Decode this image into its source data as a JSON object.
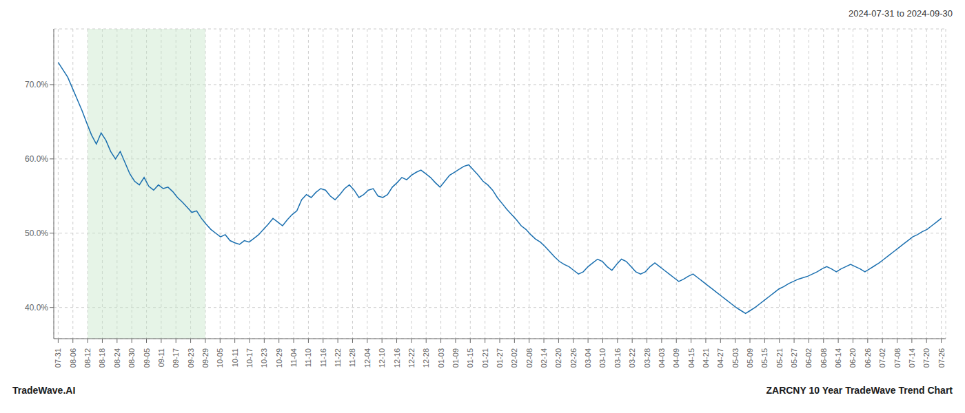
{
  "chart_data": {
    "type": "line",
    "title": "ZARCNY 10 Year TradeWave Trend Chart",
    "subtitle": "2024-07-31 to 2024-09-30",
    "annotations": [
      "TradeWave.AI"
    ],
    "color": "#1a6faf",
    "grid": true,
    "shaded_range": {
      "from": "08-12",
      "to": "09-29",
      "color": "#c8e6c9"
    },
    "xlim": [
      -0.3,
      60.3
    ],
    "xticks": [
      {
        "value": 0,
        "label": "07-31"
      },
      {
        "value": 1,
        "label": "08-06"
      },
      {
        "value": 2,
        "label": "08-12"
      },
      {
        "value": 3,
        "label": "08-18"
      },
      {
        "value": 4,
        "label": "08-24"
      },
      {
        "value": 5,
        "label": "08-30"
      },
      {
        "value": 6,
        "label": "09-05"
      },
      {
        "value": 7,
        "label": "09-11"
      },
      {
        "value": 8,
        "label": "09-17"
      },
      {
        "value": 9,
        "label": "09-23"
      },
      {
        "value": 10,
        "label": "09-29"
      },
      {
        "value": 11,
        "label": "10-05"
      },
      {
        "value": 12,
        "label": "10-11"
      },
      {
        "value": 13,
        "label": "10-17"
      },
      {
        "value": 14,
        "label": "10-23"
      },
      {
        "value": 15,
        "label": "10-29"
      },
      {
        "value": 16,
        "label": "11-04"
      },
      {
        "value": 17,
        "label": "11-10"
      },
      {
        "value": 18,
        "label": "11-16"
      },
      {
        "value": 19,
        "label": "11-22"
      },
      {
        "value": 20,
        "label": "11-28"
      },
      {
        "value": 21,
        "label": "12-04"
      },
      {
        "value": 22,
        "label": "12-10"
      },
      {
        "value": 23,
        "label": "12-16"
      },
      {
        "value": 24,
        "label": "12-22"
      },
      {
        "value": 25,
        "label": "12-28"
      },
      {
        "value": 26,
        "label": "01-03"
      },
      {
        "value": 27,
        "label": "01-09"
      },
      {
        "value": 28,
        "label": "01-15"
      },
      {
        "value": 29,
        "label": "01-21"
      },
      {
        "value": 30,
        "label": "01-27"
      },
      {
        "value": 31,
        "label": "02-02"
      },
      {
        "value": 32,
        "label": "02-08"
      },
      {
        "value": 33,
        "label": "02-14"
      },
      {
        "value": 34,
        "label": "02-20"
      },
      {
        "value": 35,
        "label": "02-26"
      },
      {
        "value": 36,
        "label": "03-04"
      },
      {
        "value": 37,
        "label": "03-10"
      },
      {
        "value": 38,
        "label": "03-16"
      },
      {
        "value": 39,
        "label": "03-22"
      },
      {
        "value": 40,
        "label": "03-28"
      },
      {
        "value": 41,
        "label": "04-03"
      },
      {
        "value": 42,
        "label": "04-09"
      },
      {
        "value": 43,
        "label": "04-15"
      },
      {
        "value": 44,
        "label": "04-21"
      },
      {
        "value": 45,
        "label": "04-27"
      },
      {
        "value": 46,
        "label": "05-03"
      },
      {
        "value": 47,
        "label": "05-09"
      },
      {
        "value": 48,
        "label": "05-15"
      },
      {
        "value": 49,
        "label": "05-21"
      },
      {
        "value": 50,
        "label": "05-27"
      },
      {
        "value": 51,
        "label": "06-02"
      },
      {
        "value": 52,
        "label": "06-08"
      },
      {
        "value": 53,
        "label": "06-14"
      },
      {
        "value": 54,
        "label": "06-20"
      },
      {
        "value": 55,
        "label": "06-26"
      },
      {
        "value": 56,
        "label": "07-02"
      },
      {
        "value": 57,
        "label": "07-08"
      },
      {
        "value": 58,
        "label": "07-14"
      },
      {
        "value": 59,
        "label": "07-20"
      },
      {
        "value": 60,
        "label": "07-26"
      }
    ],
    "ylim": [
      0.358,
      0.775
    ],
    "yticks": [
      {
        "value": 0.4,
        "label": "40.0%"
      },
      {
        "value": 0.5,
        "label": "50.0%"
      },
      {
        "value": 0.6,
        "label": "60.0%"
      },
      {
        "value": 0.7,
        "label": "70.0%"
      }
    ],
    "values": [
      0.73,
      0.72,
      0.71,
      0.695,
      0.68,
      0.665,
      0.648,
      0.632,
      0.62,
      0.635,
      0.625,
      0.61,
      0.6,
      0.61,
      0.595,
      0.58,
      0.57,
      0.565,
      0.575,
      0.563,
      0.558,
      0.565,
      0.56,
      0.562,
      0.556,
      0.548,
      0.542,
      0.535,
      0.528,
      0.53,
      0.52,
      0.512,
      0.505,
      0.5,
      0.495,
      0.498,
      0.49,
      0.487,
      0.485,
      0.49,
      0.488,
      0.493,
      0.498,
      0.505,
      0.512,
      0.52,
      0.515,
      0.51,
      0.518,
      0.525,
      0.53,
      0.545,
      0.552,
      0.548,
      0.555,
      0.56,
      0.558,
      0.55,
      0.545,
      0.552,
      0.56,
      0.565,
      0.558,
      0.548,
      0.552,
      0.558,
      0.56,
      0.55,
      0.548,
      0.552,
      0.562,
      0.568,
      0.575,
      0.572,
      0.578,
      0.582,
      0.585,
      0.58,
      0.575,
      0.568,
      0.562,
      0.57,
      0.578,
      0.582,
      0.586,
      0.59,
      0.592,
      0.585,
      0.578,
      0.57,
      0.565,
      0.558,
      0.548,
      0.54,
      0.532,
      0.525,
      0.518,
      0.51,
      0.505,
      0.498,
      0.492,
      0.488,
      0.482,
      0.475,
      0.468,
      0.462,
      0.458,
      0.455,
      0.45,
      0.445,
      0.448,
      0.455,
      0.46,
      0.465,
      0.462,
      0.455,
      0.45,
      0.458,
      0.465,
      0.462,
      0.455,
      0.448,
      0.445,
      0.448,
      0.455,
      0.46,
      0.455,
      0.45,
      0.445,
      0.44,
      0.435,
      0.438,
      0.442,
      0.445,
      0.44,
      0.435,
      0.43,
      0.425,
      0.42,
      0.415,
      0.41,
      0.405,
      0.4,
      0.396,
      0.392,
      0.396,
      0.4,
      0.405,
      0.41,
      0.415,
      0.42,
      0.425,
      0.428,
      0.432,
      0.435,
      0.438,
      0.44,
      0.442,
      0.445,
      0.448,
      0.452,
      0.455,
      0.452,
      0.448,
      0.452,
      0.455,
      0.458,
      0.455,
      0.452,
      0.448,
      0.452,
      0.456,
      0.46,
      0.465,
      0.47,
      0.475,
      0.48,
      0.485,
      0.49,
      0.495,
      0.498,
      0.502,
      0.505,
      0.51,
      0.515,
      0.52
    ]
  }
}
